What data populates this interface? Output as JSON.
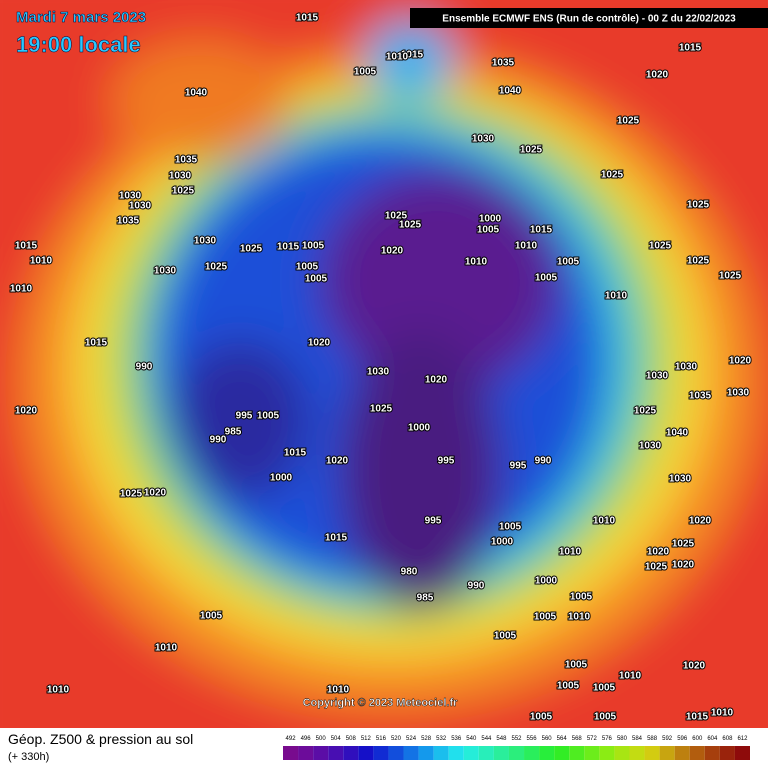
{
  "header": {
    "date": "Mardi 7 mars 2023",
    "time": "19:00 locale",
    "run": "Ensemble ECMWF ENS  (Run de contrôle)  -  00 Z du 22/02/2023"
  },
  "copyright": "Copyright © 2023 Meteociel.fr",
  "footer": {
    "title": "Géop. Z500 & pression au sol",
    "lead": "(+ 330h)"
  },
  "scale": [
    492,
    496,
    500,
    504,
    508,
    512,
    516,
    520,
    524,
    528,
    532,
    536,
    540,
    544,
    548,
    552,
    556,
    560,
    564,
    568,
    572,
    576,
    580,
    584,
    588,
    592,
    596,
    600,
    604,
    608,
    612
  ],
  "isobars": [
    "1015",
    "1015",
    "1010",
    "1005",
    "1035",
    "1040",
    "1015",
    "1020",
    "1040",
    "1035",
    "1030",
    "1025",
    "1030",
    "1030",
    "1035",
    "1015",
    "1010",
    "1010",
    "1030",
    "1025",
    "1015",
    "1005",
    "1030",
    "1025",
    "1005",
    "1005",
    "1030",
    "1025",
    "1025",
    "1025",
    "1025",
    "1025",
    "1000",
    "1005",
    "1015",
    "1010",
    "1020",
    "1010",
    "1005",
    "1005",
    "1025",
    "1025",
    "1025",
    "1025",
    "1010",
    "1015",
    "1020",
    "1030",
    "1020",
    "1025",
    "1000",
    "995",
    "995",
    "990",
    "990",
    "1020",
    "985",
    "990",
    "995",
    "1005",
    "1015",
    "1020",
    "1000",
    "1025",
    "1020",
    "1015",
    "995",
    "1005",
    "1000",
    "1010",
    "1010",
    "980",
    "985",
    "990",
    "1000",
    "1005",
    "1005",
    "1005",
    "1010",
    "1005",
    "1010",
    "1010",
    "1010",
    "1005",
    "1005",
    "1030",
    "1035",
    "1030",
    "1020",
    "1030",
    "1025",
    "1030",
    "1030",
    "1040",
    "1020",
    "1025",
    "1020",
    "1025",
    "1020",
    "1020",
    "1005",
    "1010",
    "1005",
    "1005",
    "1010",
    "1015"
  ]
}
